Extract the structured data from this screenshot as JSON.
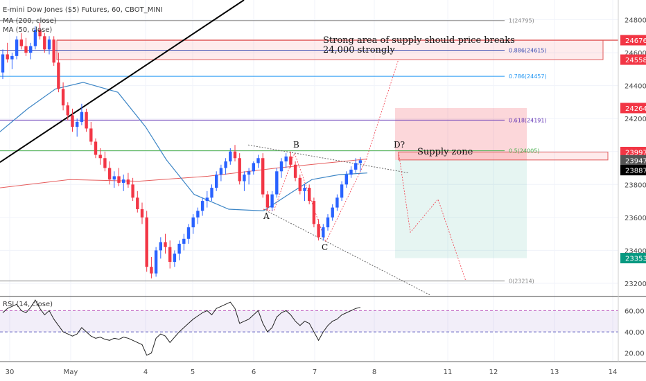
{
  "chart_data": {
    "type": "candlestick",
    "header": {
      "title": "E-mini Dow Jones ($5) Futures, 60, CBOT_MINI",
      "ma200": "MA (200, close)",
      "ma50": "MA (50, close)",
      "rsi": "RSI (14, close)"
    },
    "y_range": [
      23120,
      24920
    ],
    "y_ticks": [
      "24800",
      "24600",
      "24400",
      "24200",
      "24000",
      "23800",
      "23600",
      "23400",
      "23200"
    ],
    "rsi_range": [
      12,
      72
    ],
    "rsi_ticks": [
      "60.00",
      "40.00",
      "20.00"
    ],
    "rsi_band": [
      40,
      60
    ],
    "x_labels": [
      "30",
      "May",
      "4",
      "5",
      "6",
      "7",
      "8",
      "11",
      "12",
      "13",
      "14"
    ],
    "fib_levels": [
      {
        "label": "1(24795)",
        "value": 24795,
        "color": "#888888"
      },
      {
        "label": "0.886(24615)",
        "value": 24615,
        "color": "#3f51b5"
      },
      {
        "label": "0.786(24457)",
        "value": 24457,
        "color": "#2196f3"
      },
      {
        "label": "0.618(24191)",
        "value": 24191,
        "color": "#673ab7"
      },
      {
        "label": "0.5(24005)",
        "value": 24005,
        "color": "#4caf50"
      },
      {
        "label": "0(23214)",
        "value": 23214,
        "color": "#888888"
      }
    ],
    "price_labels": [
      {
        "text": "24676",
        "value": 24676,
        "color": "#f23645"
      },
      {
        "text": "24558",
        "value": 24558,
        "color": "#f23645"
      },
      {
        "text": "24264",
        "value": 24264,
        "color": "#f23645"
      },
      {
        "text": "23997",
        "value": 23997,
        "color": "#f23645"
      },
      {
        "text": "23949",
        "value": 23949,
        "color": "#f23645"
      },
      {
        "text": "23947",
        "value": 23947,
        "color": "#555555"
      },
      {
        "text": "23887",
        "value": 23887,
        "color": "#000000"
      },
      {
        "text": "23353",
        "value": 23353,
        "color": "#089981"
      }
    ],
    "annotations": {
      "supply_text_1": "Strong area of supply should price breaks",
      "supply_text_2": "24,000 strongly",
      "supply_zone": "Supply zone",
      "A": "A",
      "B": "B",
      "C": "C",
      "D": "D?"
    },
    "zones": {
      "upper_supply": [
        24558,
        24676
      ],
      "supply_zone": [
        23949,
        23997
      ],
      "stop": [
        23949,
        24264
      ],
      "target": [
        23353,
        23949
      ]
    },
    "candles": [
      [
        24480,
        24620,
        24440,
        24590
      ],
      [
        24590,
        24660,
        24540,
        24560
      ],
      [
        24560,
        24600,
        24500,
        24580
      ],
      [
        24580,
        24700,
        24560,
        24680
      ],
      [
        24680,
        24720,
        24620,
        24640
      ],
      [
        24640,
        24690,
        24580,
        24600
      ],
      [
        24600,
        24660,
        24560,
        24640
      ],
      [
        24640,
        24760,
        24620,
        24740
      ],
      [
        24740,
        24780,
        24680,
        24700
      ],
      [
        24700,
        24720,
        24600,
        24620
      ],
      [
        24620,
        24700,
        24590,
        24680
      ],
      [
        24680,
        24700,
        24520,
        24540
      ],
      [
        24540,
        24600,
        24360,
        24380
      ],
      [
        24380,
        24420,
        24250,
        24280
      ],
      [
        24280,
        24300,
        24190,
        24220
      ],
      [
        24220,
        24260,
        24120,
        24150
      ],
      [
        24150,
        24200,
        24090,
        24180
      ],
      [
        24180,
        24290,
        24160,
        24240
      ],
      [
        24240,
        24260,
        24120,
        24140
      ],
      [
        24140,
        24180,
        24040,
        24060
      ],
      [
        24060,
        24080,
        23960,
        23980
      ],
      [
        23980,
        24020,
        23920,
        23960
      ],
      [
        23960,
        24000,
        23880,
        23900
      ],
      [
        23900,
        23940,
        23800,
        23830
      ],
      [
        23830,
        23880,
        23780,
        23850
      ],
      [
        23850,
        23900,
        23790,
        23810
      ],
      [
        23810,
        23860,
        23760,
        23830
      ],
      [
        23830,
        23870,
        23780,
        23800
      ],
      [
        23800,
        23840,
        23700,
        23720
      ],
      [
        23720,
        23760,
        23630,
        23650
      ],
      [
        23650,
        23690,
        23560,
        23600
      ],
      [
        23600,
        23640,
        23270,
        23300
      ],
      [
        23300,
        23360,
        23230,
        23260
      ],
      [
        23260,
        23420,
        23240,
        23400
      ],
      [
        23400,
        23480,
        23350,
        23450
      ],
      [
        23450,
        23500,
        23380,
        23420
      ],
      [
        23420,
        23460,
        23290,
        23330
      ],
      [
        23330,
        23400,
        23300,
        23380
      ],
      [
        23380,
        23460,
        23340,
        23440
      ],
      [
        23440,
        23500,
        23400,
        23470
      ],
      [
        23470,
        23560,
        23440,
        23540
      ],
      [
        23540,
        23620,
        23500,
        23600
      ],
      [
        23600,
        23660,
        23560,
        23640
      ],
      [
        23640,
        23720,
        23610,
        23700
      ],
      [
        23700,
        23760,
        23660,
        23720
      ],
      [
        23720,
        23800,
        23700,
        23780
      ],
      [
        23780,
        23880,
        23760,
        23860
      ],
      [
        23860,
        23920,
        23820,
        23900
      ],
      [
        23900,
        23960,
        23860,
        23940
      ],
      [
        23940,
        24020,
        23920,
        24000
      ],
      [
        24000,
        24040,
        23940,
        23960
      ],
      [
        23960,
        23990,
        23800,
        23820
      ],
      [
        23820,
        23880,
        23760,
        23860
      ],
      [
        23860,
        23900,
        23800,
        23880
      ],
      [
        23880,
        23940,
        23860,
        23930
      ],
      [
        23930,
        23980,
        23900,
        23960
      ],
      [
        23960,
        23990,
        23720,
        23740
      ],
      [
        23740,
        23760,
        23640,
        23660
      ],
      [
        23660,
        23760,
        23640,
        23740
      ],
      [
        23740,
        23900,
        23720,
        23880
      ],
      [
        23880,
        23960,
        23840,
        23940
      ],
      [
        23940,
        23990,
        23900,
        23970
      ],
      [
        23970,
        24000,
        23900,
        23920
      ],
      [
        23920,
        23940,
        23820,
        23840
      ],
      [
        23840,
        23860,
        23740,
        23760
      ],
      [
        23760,
        23800,
        23700,
        23780
      ],
      [
        23780,
        23800,
        23680,
        23700
      ],
      [
        23700,
        23720,
        23540,
        23560
      ],
      [
        23560,
        23590,
        23460,
        23480
      ],
      [
        23480,
        23560,
        23460,
        23540
      ],
      [
        23540,
        23620,
        23520,
        23600
      ],
      [
        23600,
        23680,
        23580,
        23660
      ],
      [
        23660,
        23740,
        23640,
        23720
      ],
      [
        23720,
        23820,
        23700,
        23800
      ],
      [
        23800,
        23880,
        23780,
        23860
      ],
      [
        23860,
        23910,
        23840,
        23890
      ],
      [
        23890,
        23960,
        23870,
        23930
      ],
      [
        23930,
        23965,
        23880,
        23947
      ]
    ],
    "rsi_values": [
      58,
      62,
      64,
      66,
      60,
      58,
      63,
      70,
      62,
      56,
      60,
      52,
      46,
      40,
      38,
      36,
      38,
      44,
      40,
      36,
      34,
      35,
      33,
      32,
      34,
      33,
      35,
      34,
      32,
      30,
      28,
      18,
      20,
      34,
      38,
      36,
      30,
      35,
      40,
      44,
      48,
      52,
      55,
      58,
      60,
      56,
      62,
      64,
      66,
      68,
      62,
      48,
      50,
      52,
      56,
      60,
      48,
      40,
      44,
      54,
      58,
      60,
      56,
      50,
      46,
      50,
      48,
      40,
      32,
      40,
      46,
      50,
      52,
      56,
      58,
      60,
      62,
      63
    ]
  }
}
